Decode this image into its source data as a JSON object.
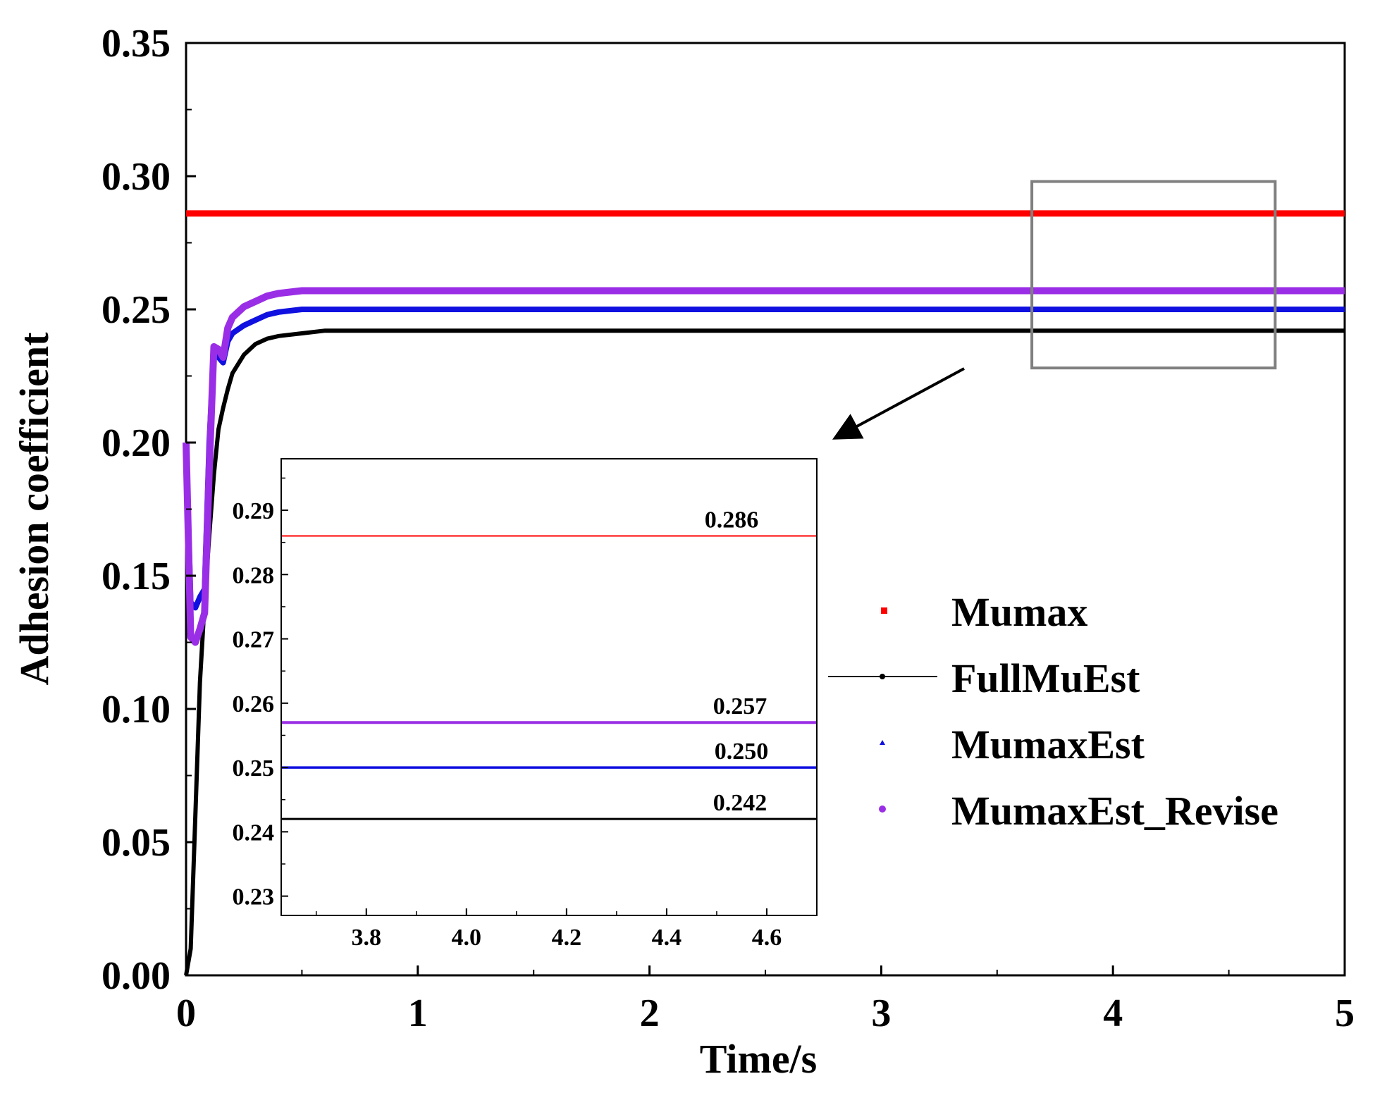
{
  "chart_data": [
    {
      "type": "line",
      "xlabel": "Time/s",
      "ylabel": "Adhesion coefficient",
      "xlim": [
        0,
        5
      ],
      "ylim": [
        0,
        0.35
      ],
      "x_ticks": [
        0,
        1,
        2,
        3,
        4,
        5
      ],
      "x_tick_labels": [
        "0",
        "1",
        "2",
        "3",
        "4",
        "5"
      ],
      "y_ticks": [
        0,
        0.05,
        0.1,
        0.15,
        0.2,
        0.25,
        0.3,
        0.35
      ],
      "y_tick_labels": [
        "0.00",
        "0.05",
        "0.10",
        "0.15",
        "0.20",
        "0.25",
        "0.30",
        "0.35"
      ],
      "legend": {
        "placement": "center-right",
        "entries": [
          "Mumax",
          "FullMuEst",
          "MumaxEst",
          "MumaxEst_Revise"
        ]
      },
      "zoom_box": {
        "x": [
          3.65,
          4.7
        ],
        "y": [
          0.228,
          0.298
        ]
      },
      "series": [
        {
          "name": "Mumax",
          "color": "#ff0000",
          "x": [
            0,
            5
          ],
          "y": [
            0.286,
            0.286
          ]
        },
        {
          "name": "FullMuEst",
          "color": "#000000",
          "x": [
            0,
            0.02,
            0.04,
            0.06,
            0.08,
            0.1,
            0.12,
            0.14,
            0.16,
            0.18,
            0.2,
            0.25,
            0.3,
            0.35,
            0.4,
            0.5,
            0.6,
            0.8,
            1,
            2,
            3,
            4,
            5
          ],
          "y": [
            0,
            0.01,
            0.06,
            0.11,
            0.14,
            0.165,
            0.188,
            0.205,
            0.213,
            0.22,
            0.226,
            0.233,
            0.237,
            0.239,
            0.24,
            0.241,
            0.242,
            0.242,
            0.242,
            0.242,
            0.242,
            0.242,
            0.242
          ]
        },
        {
          "name": "MumaxEst",
          "color": "#1010e0",
          "x": [
            0,
            0.02,
            0.04,
            0.06,
            0.08,
            0.1,
            0.12,
            0.14,
            0.16,
            0.18,
            0.2,
            0.25,
            0.3,
            0.35,
            0.4,
            0.5,
            0.6,
            0.8,
            1,
            2,
            3,
            4,
            5
          ],
          "y": [
            0.2,
            0.14,
            0.138,
            0.142,
            0.145,
            0.2,
            0.235,
            0.232,
            0.23,
            0.238,
            0.241,
            0.244,
            0.246,
            0.248,
            0.249,
            0.25,
            0.25,
            0.25,
            0.25,
            0.25,
            0.25,
            0.25,
            0.25
          ]
        },
        {
          "name": "MumaxEst_Revise",
          "color": "#9a2ee6",
          "x": [
            0,
            0.02,
            0.04,
            0.06,
            0.08,
            0.1,
            0.12,
            0.14,
            0.16,
            0.18,
            0.2,
            0.25,
            0.3,
            0.35,
            0.4,
            0.5,
            0.6,
            0.8,
            1,
            2,
            3,
            4,
            5
          ],
          "y": [
            0.2,
            0.127,
            0.125,
            0.13,
            0.136,
            0.19,
            0.236,
            0.235,
            0.232,
            0.243,
            0.247,
            0.251,
            0.253,
            0.255,
            0.256,
            0.257,
            0.257,
            0.257,
            0.257,
            0.257,
            0.257,
            0.257,
            0.257
          ]
        }
      ]
    },
    {
      "type": "line",
      "xlabel": "",
      "ylabel": "",
      "xlim": [
        3.63,
        4.7
      ],
      "ylim": [
        0.227,
        0.298
      ],
      "x_ticks": [
        3.8,
        4.0,
        4.2,
        4.4,
        4.6
      ],
      "x_tick_labels": [
        "3.8",
        "4.0",
        "4.2",
        "4.4",
        "4.6"
      ],
      "y_ticks": [
        0.23,
        0.24,
        0.25,
        0.26,
        0.27,
        0.28,
        0.29
      ],
      "y_tick_labels": [
        "0.23",
        "0.24",
        "0.25",
        "0.26",
        "0.27",
        "0.28",
        "0.29"
      ],
      "annotations": [
        {
          "label": "0.286",
          "value": 0.286
        },
        {
          "label": "0.257",
          "value": 0.257
        },
        {
          "label": "0.250",
          "value": 0.25
        },
        {
          "label": "0.242",
          "value": 0.242
        }
      ],
      "series": [
        {
          "name": "Mumax",
          "color": "#ff0000",
          "x": [
            3.63,
            4.7
          ],
          "y": [
            0.286,
            0.286
          ]
        },
        {
          "name": "MumaxEst_Revise",
          "color": "#9a2ee6",
          "x": [
            3.63,
            4.7
          ],
          "y": [
            0.257,
            0.257
          ]
        },
        {
          "name": "MumaxEst",
          "color": "#1010e0",
          "x": [
            3.63,
            4.7
          ],
          "y": [
            0.25,
            0.25
          ]
        },
        {
          "name": "FullMuEst",
          "color": "#000000",
          "x": [
            3.63,
            4.7
          ],
          "y": [
            0.242,
            0.242
          ]
        }
      ]
    }
  ]
}
